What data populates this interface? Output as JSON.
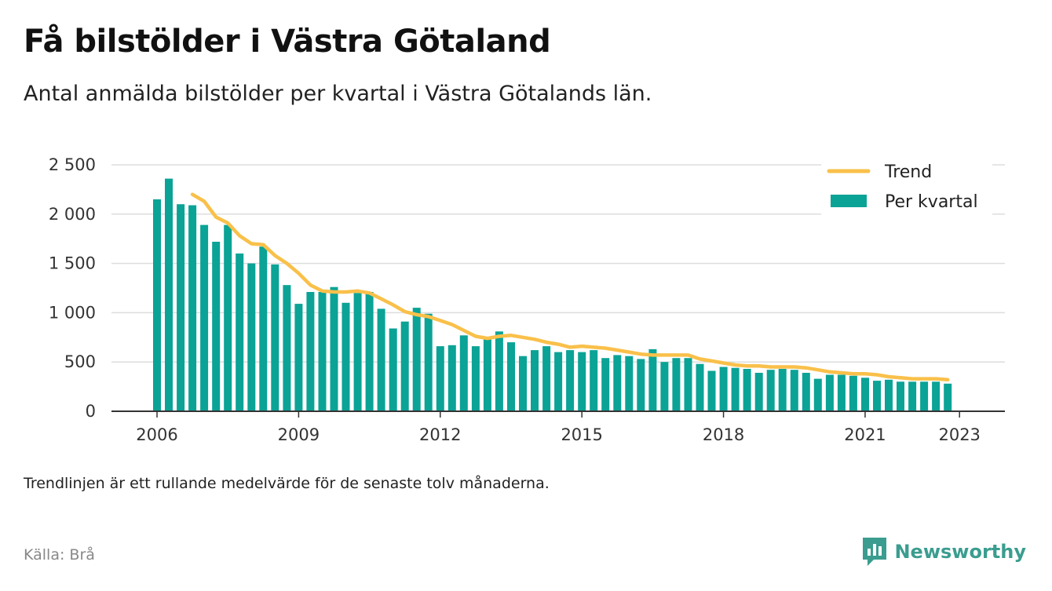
{
  "title": "Få bilstölder i Västra Götaland",
  "subtitle": "Antal anmälda bilstölder per kvartal i Västra Götalands län.",
  "note": "Trendlinjen är ett rullande medelvärde för de senaste tolv månaderna.",
  "source": "Källa: Brå",
  "brand": {
    "name": "Newsworthy",
    "icon": "newsworthy-logo-icon",
    "color": "#3a9d8f"
  },
  "chart_data": {
    "type": "bar",
    "title": "",
    "xlabel": "",
    "ylabel": "",
    "ylim": [
      0,
      2500
    ],
    "y_ticks": [
      0,
      500,
      1000,
      1500,
      2000,
      2500
    ],
    "y_tick_labels": [
      "0",
      "500",
      "1 000",
      "1 500",
      "2 000",
      "2 500"
    ],
    "x_ticks": [
      2006,
      2009,
      2012,
      2015,
      2018,
      2021,
      2023
    ],
    "x_tick_labels": [
      "2006",
      "2009",
      "2012",
      "2015",
      "2018",
      "2021",
      "2023"
    ],
    "x_start": 2006,
    "grid": true,
    "legend_position": "top-right",
    "colors": {
      "bars": "#0aa396",
      "trend": "#f9c04a",
      "grid": "#dddddd",
      "axis": "#333333"
    },
    "series": [
      {
        "name": "Per kvartal",
        "type": "bar",
        "values": [
          2150,
          2360,
          2100,
          2090,
          1890,
          1720,
          1890,
          1600,
          1500,
          1670,
          1490,
          1280,
          1090,
          1210,
          1210,
          1260,
          1100,
          1200,
          1210,
          1040,
          840,
          910,
          1050,
          990,
          660,
          670,
          770,
          660,
          750,
          810,
          700,
          560,
          620,
          660,
          600,
          620,
          600,
          620,
          540,
          570,
          560,
          530,
          630,
          500,
          540,
          540,
          480,
          410,
          450,
          440,
          430,
          390,
          420,
          430,
          420,
          390,
          330,
          370,
          370,
          360,
          340,
          310,
          320,
          300,
          300,
          300,
          300,
          280
        ]
      },
      {
        "name": "Trend",
        "type": "line",
        "start_index": 3,
        "values": [
          2200,
          2130,
          1970,
          1910,
          1780,
          1700,
          1690,
          1580,
          1500,
          1400,
          1280,
          1220,
          1210,
          1210,
          1220,
          1200,
          1140,
          1080,
          1010,
          980,
          960,
          920,
          880,
          820,
          760,
          740,
          760,
          770,
          750,
          730,
          700,
          680,
          650,
          660,
          650,
          640,
          620,
          600,
          580,
          570,
          570,
          570,
          570,
          530,
          510,
          490,
          470,
          460,
          460,
          450,
          450,
          450,
          440,
          420,
          400,
          390,
          380,
          380,
          370,
          350,
          340,
          330,
          330,
          330,
          320
        ]
      }
    ]
  }
}
